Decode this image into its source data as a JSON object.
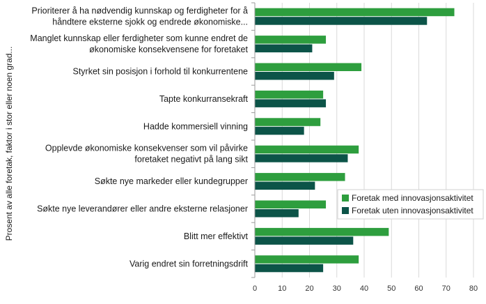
{
  "chart_data": {
    "type": "bar",
    "orientation": "horizontal",
    "ylabel": "Prosent av alle foretak, faktor i stor eller noen grad...",
    "xlim": [
      0,
      80
    ],
    "xticks": [
      0,
      10,
      20,
      30,
      40,
      50,
      60,
      70,
      80
    ],
    "grid": "vertical",
    "legend_position": "right",
    "categories": [
      [
        "Prioriterer å ha nødvendig kunnskap og ferdigheter for å",
        "håndtere eksterne sjokk og endrede økonomiske..."
      ],
      [
        "Manglet kunnskap eller ferdigheter som kunne endret de",
        "økonomiske konsekvensene for foretaket"
      ],
      [
        "Styrket sin posisjon i forhold til konkurrentene"
      ],
      [
        "Tapte konkurransekraft"
      ],
      [
        "Hadde kommersiell vinning"
      ],
      [
        "Opplevde økonomiske konsekvenser som vil påvirke",
        "foretaket negativt på lang sikt"
      ],
      [
        "Søkte nye markeder eller kundegrupper"
      ],
      [
        "Søkte nye leverandører eller andre eksterne relasjoner"
      ],
      [
        "Blitt mer effektivt"
      ],
      [
        "Varig endret sin forretningsdrift"
      ]
    ],
    "series": [
      {
        "name": "Foretak med innovasjonsaktivitet",
        "color": "#2e9e3e",
        "values": [
          73,
          26,
          39,
          25,
          24,
          38,
          33,
          26,
          49,
          38
        ]
      },
      {
        "name": "Foretak uten innovasjonsaktivitet",
        "color": "#0c5448",
        "values": [
          63,
          21,
          29,
          26,
          18,
          34,
          22,
          16,
          36,
          25
        ]
      }
    ]
  }
}
